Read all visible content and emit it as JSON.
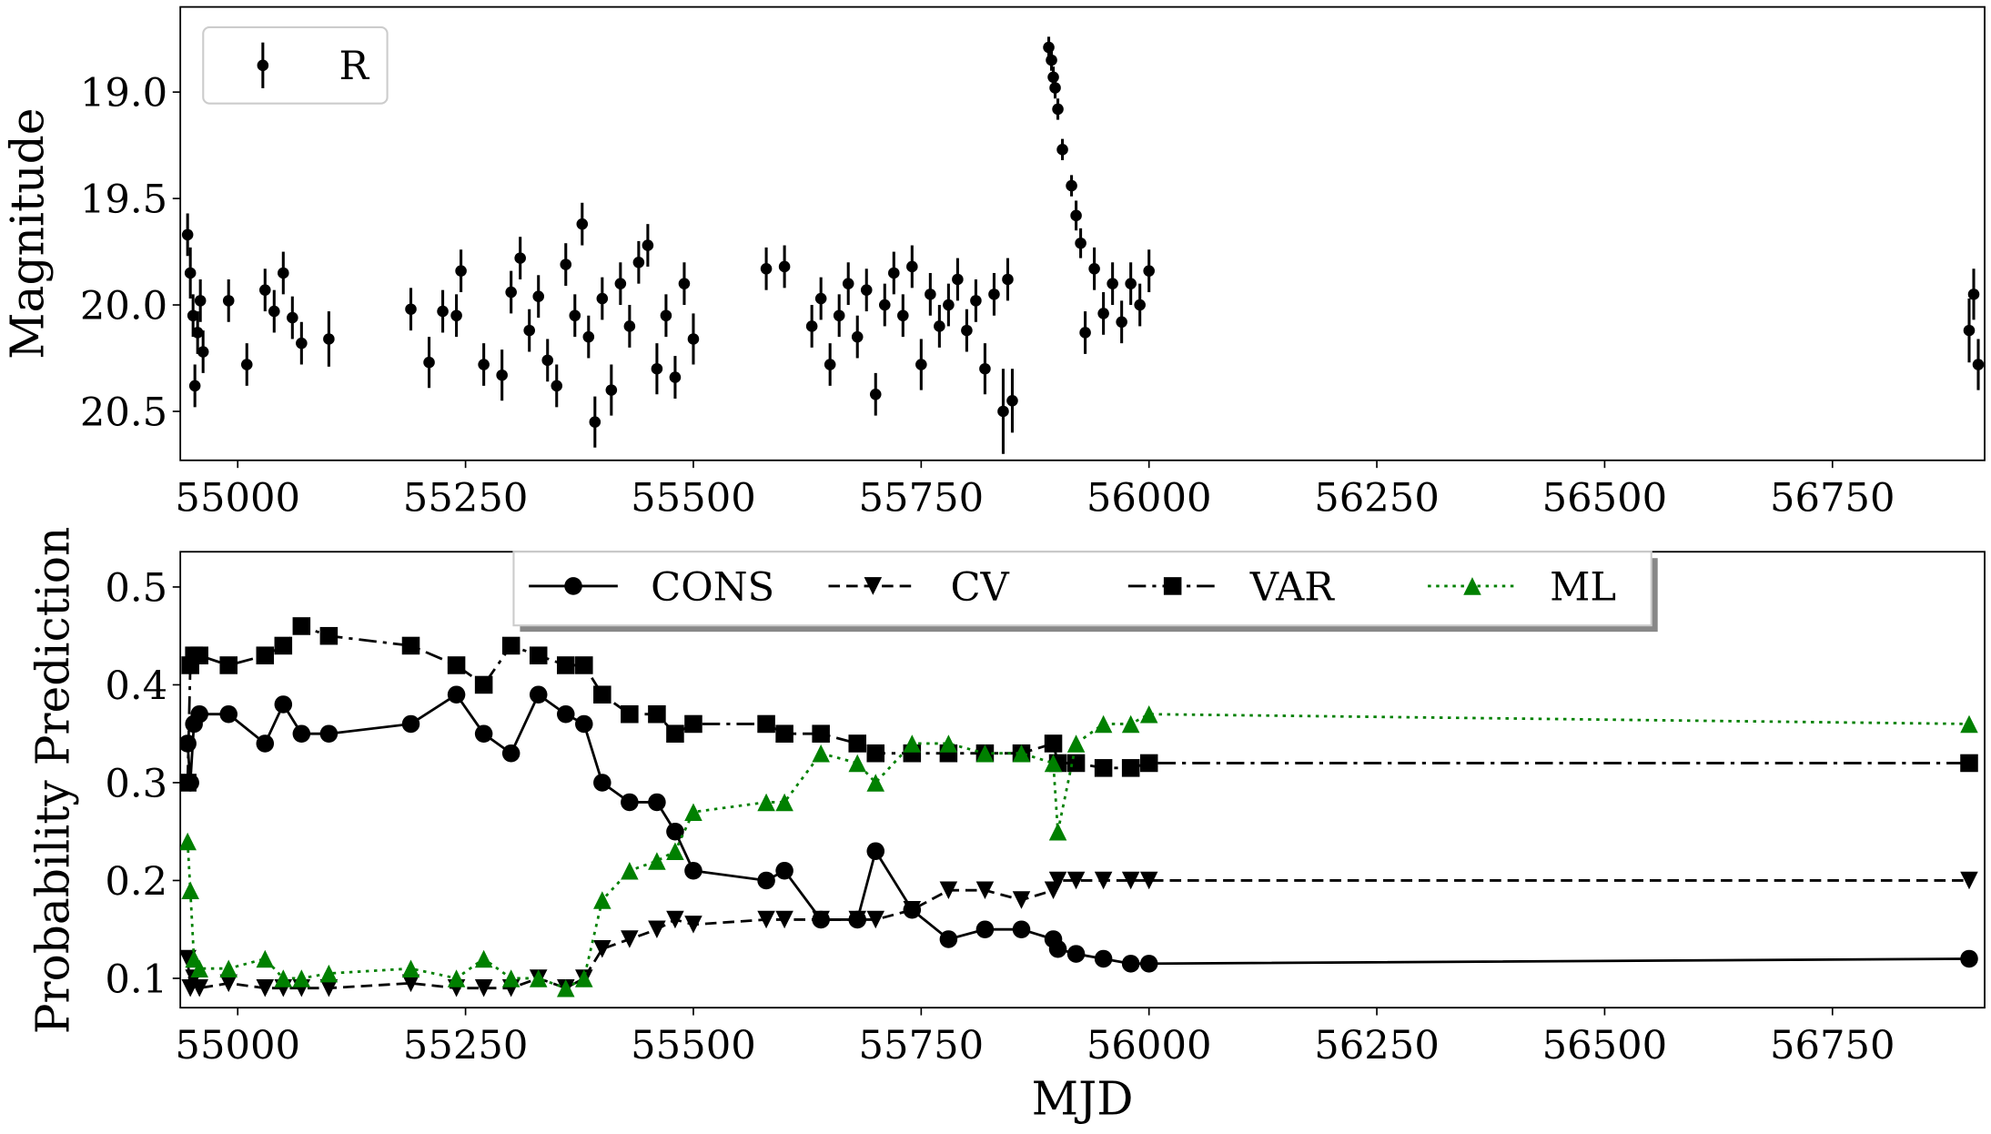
{
  "chart_data": [
    {
      "type": "errorbar",
      "ylabel": "Magnitude",
      "invert_y": true,
      "legend": "upper left",
      "xlim": [
        54937,
        56917
      ],
      "ylim": [
        18.6,
        20.73
      ],
      "xticks": [
        55000,
        55250,
        55500,
        55750,
        56000,
        56250,
        56500,
        56750
      ],
      "yticks": [
        {
          "value": 19,
          "label": "19.0"
        },
        19.5,
        {
          "value": 20,
          "label": "20.0"
        },
        20.5
      ],
      "x": [
        54945,
        54948,
        54951,
        54953,
        54956,
        54959,
        54962,
        54990,
        55010,
        55030,
        55040,
        55050,
        55060,
        55070,
        55100,
        55190,
        55210,
        55225,
        55240,
        55245,
        55270,
        55290,
        55300,
        55310,
        55320,
        55330,
        55340,
        55350,
        55360,
        55370,
        55378,
        55385,
        55392,
        55400,
        55410,
        55420,
        55430,
        55440,
        55450,
        55460,
        55470,
        55480,
        55490,
        55500,
        55580,
        55600,
        55630,
        55640,
        55650,
        55660,
        55670,
        55680,
        55690,
        55700,
        55710,
        55720,
        55730,
        55740,
        55750,
        55760,
        55770,
        55780,
        55790,
        55800,
        55810,
        55820,
        55830,
        55840,
        55845,
        55850,
        55890,
        55893,
        55895,
        55897,
        55900,
        55905,
        55915,
        55920,
        55925,
        55930,
        55940,
        55950,
        55960,
        55970,
        55980,
        55990,
        56000,
        56900,
        56905,
        56910
      ],
      "series": [
        {
          "name": "R",
          "color": "#000000",
          "values": [
            19.67,
            19.85,
            20.05,
            20.38,
            20.13,
            19.98,
            20.22,
            19.98,
            20.28,
            19.93,
            20.03,
            19.85,
            20.06,
            20.18,
            20.16,
            20.02,
            20.27,
            20.03,
            20.05,
            19.84,
            20.28,
            20.33,
            19.94,
            19.78,
            20.12,
            19.96,
            20.26,
            20.38,
            19.81,
            20.05,
            19.62,
            20.15,
            20.55,
            19.97,
            20.4,
            19.9,
            20.1,
            19.8,
            19.72,
            20.3,
            20.05,
            20.34,
            19.9,
            20.16,
            19.83,
            19.82,
            20.1,
            19.97,
            20.28,
            20.05,
            19.9,
            20.15,
            19.93,
            20.42,
            20.0,
            19.85,
            20.05,
            19.82,
            20.28,
            19.95,
            20.1,
            20.0,
            19.88,
            20.12,
            19.98,
            20.3,
            19.95,
            20.5,
            19.88,
            20.45,
            18.79,
            18.85,
            18.93,
            18.98,
            19.08,
            19.27,
            19.44,
            19.58,
            19.71,
            20.13,
            19.83,
            20.04,
            19.9,
            20.08,
            19.9,
            20.0,
            19.84,
            20.12,
            19.95,
            20.28
          ],
          "errors": [
            0.1,
            0.12,
            0.1,
            0.1,
            0.1,
            0.1,
            0.1,
            0.1,
            0.1,
            0.1,
            0.1,
            0.1,
            0.1,
            0.1,
            0.13,
            0.1,
            0.12,
            0.1,
            0.1,
            0.1,
            0.1,
            0.12,
            0.1,
            0.1,
            0.1,
            0.1,
            0.1,
            0.1,
            0.1,
            0.1,
            0.1,
            0.1,
            0.12,
            0.1,
            0.12,
            0.1,
            0.1,
            0.1,
            0.1,
            0.12,
            0.1,
            0.1,
            0.1,
            0.12,
            0.1,
            0.1,
            0.1,
            0.1,
            0.1,
            0.1,
            0.1,
            0.1,
            0.1,
            0.1,
            0.1,
            0.1,
            0.1,
            0.1,
            0.12,
            0.1,
            0.1,
            0.1,
            0.1,
            0.1,
            0.1,
            0.12,
            0.1,
            0.2,
            0.1,
            0.15,
            0.05,
            0.05,
            0.05,
            0.05,
            0.05,
            0.05,
            0.05,
            0.07,
            0.07,
            0.1,
            0.1,
            0.1,
            0.1,
            0.1,
            0.1,
            0.1,
            0.1,
            0.15,
            0.12,
            0.12
          ]
        }
      ]
    },
    {
      "type": "line",
      "xlabel": "MJD",
      "ylabel": "Probability Prediction",
      "legend": "upper center",
      "xlim": [
        54937,
        56917
      ],
      "ylim": [
        0.07,
        0.536
      ],
      "xticks": [
        55000,
        55250,
        55500,
        55750,
        56000,
        56250,
        56500,
        56750
      ],
      "yticks": [
        0.1,
        0.2,
        0.3,
        0.4,
        0.5
      ],
      "x": [
        54945,
        54948,
        54952,
        54958,
        54990,
        55030,
        55050,
        55070,
        55100,
        55190,
        55240,
        55270,
        55300,
        55330,
        55360,
        55380,
        55400,
        55430,
        55460,
        55480,
        55500,
        55580,
        55600,
        55640,
        55680,
        55700,
        55740,
        55780,
        55820,
        55860,
        55895,
        55900,
        55920,
        55950,
        55980,
        56000,
        56900
      ],
      "series": [
        {
          "name": "CONS",
          "color": "#000000",
          "linestyle": "solid",
          "marker": "circle",
          "values": [
            0.34,
            0.3,
            0.36,
            0.37,
            0.37,
            0.34,
            0.38,
            0.35,
            0.35,
            0.36,
            0.39,
            0.35,
            0.33,
            0.39,
            0.37,
            0.36,
            0.3,
            0.28,
            0.28,
            0.25,
            0.21,
            0.2,
            0.21,
            0.16,
            0.16,
            0.23,
            0.17,
            0.14,
            0.15,
            0.15,
            0.14,
            0.13,
            0.125,
            0.12,
            0.115,
            0.115,
            0.12
          ]
        },
        {
          "name": "CV",
          "color": "#000000",
          "linestyle": "dashed",
          "marker": "triangle-down",
          "values": [
            0.12,
            0.09,
            0.1,
            0.09,
            0.095,
            0.09,
            0.09,
            0.09,
            0.09,
            0.095,
            0.09,
            0.09,
            0.09,
            0.1,
            0.09,
            0.1,
            0.13,
            0.14,
            0.15,
            0.16,
            0.155,
            0.16,
            0.16,
            0.16,
            0.16,
            0.16,
            0.17,
            0.19,
            0.19,
            0.18,
            0.19,
            0.2,
            0.2,
            0.2,
            0.2,
            0.2,
            0.2
          ]
        },
        {
          "name": "VAR",
          "color": "#000000",
          "linestyle": "dashdot",
          "marker": "square",
          "values": [
            0.3,
            0.42,
            0.43,
            0.43,
            0.42,
            0.43,
            0.44,
            0.46,
            0.45,
            0.44,
            0.42,
            0.4,
            0.44,
            0.43,
            0.42,
            0.42,
            0.39,
            0.37,
            0.37,
            0.35,
            0.36,
            0.36,
            0.35,
            0.35,
            0.34,
            0.33,
            0.33,
            0.33,
            0.33,
            0.33,
            0.34,
            0.32,
            0.32,
            0.315,
            0.315,
            0.32,
            0.32
          ]
        },
        {
          "name": "ML",
          "color": "#008000",
          "linestyle": "dotted",
          "marker": "triangle-up",
          "values": [
            0.24,
            0.19,
            0.12,
            0.11,
            0.11,
            0.12,
            0.1,
            0.1,
            0.105,
            0.11,
            0.1,
            0.12,
            0.1,
            0.1,
            0.09,
            0.1,
            0.18,
            0.21,
            0.22,
            0.23,
            0.27,
            0.28,
            0.28,
            0.33,
            0.32,
            0.3,
            0.34,
            0.34,
            0.33,
            0.33,
            0.32,
            0.25,
            0.34,
            0.36,
            0.36,
            0.37,
            0.36
          ]
        }
      ]
    }
  ]
}
